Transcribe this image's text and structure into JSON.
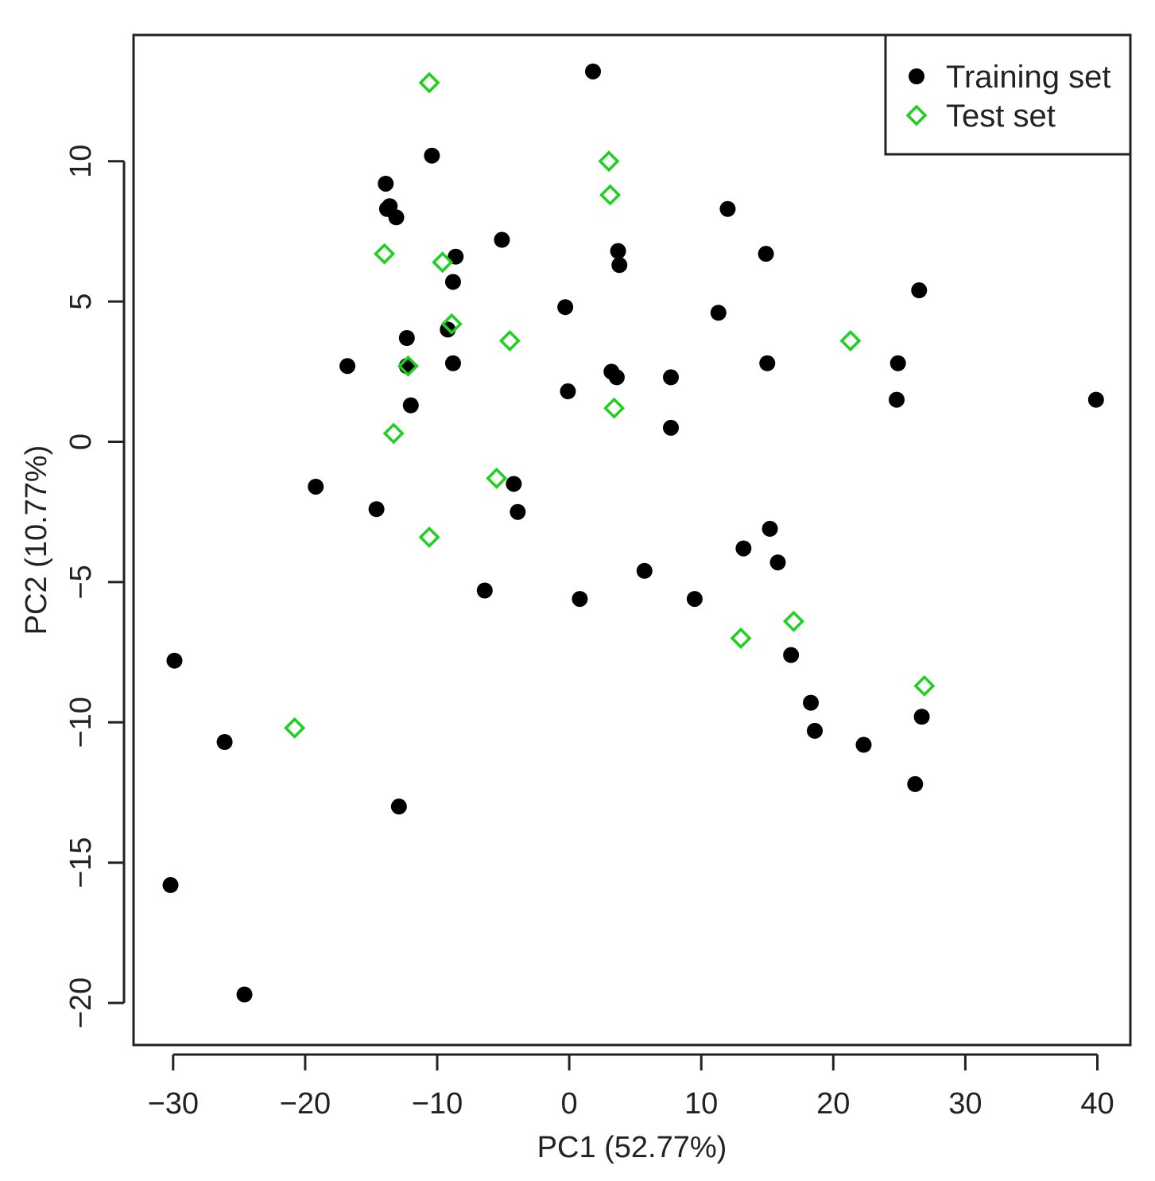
{
  "chart_data": {
    "type": "scatter",
    "title": "",
    "xlabel": "PC1 (52.77%)",
    "ylabel": "PC2 (10.77%)",
    "xlim": [
      -33,
      42.5
    ],
    "ylim": [
      -21.5,
      14.5
    ],
    "xticks": [
      -30,
      -20,
      -10,
      0,
      10,
      20,
      30,
      40
    ],
    "yticks": [
      -20,
      -15,
      -10,
      -5,
      0,
      5,
      10
    ],
    "xtick_labels": [
      "−30",
      "−20",
      "−10",
      "0",
      "10",
      "20",
      "30",
      "40"
    ],
    "ytick_labels": [
      "−20",
      "−15",
      "−10",
      "−5",
      "0",
      "5",
      "10"
    ],
    "grid": false,
    "legend_position": "top-right",
    "series": [
      {
        "name": "Training set",
        "marker": "filled-circle",
        "color": "#000000",
        "points": [
          [
            1.8,
            13.2
          ],
          [
            -10.4,
            10.2
          ],
          [
            -13.9,
            9.2
          ],
          [
            -13.8,
            8.3
          ],
          [
            -13.6,
            8.4
          ],
          [
            -13.1,
            8.0
          ],
          [
            12.0,
            8.3
          ],
          [
            -5.1,
            7.2
          ],
          [
            -8.6,
            6.6
          ],
          [
            3.7,
            6.8
          ],
          [
            14.9,
            6.7
          ],
          [
            3.8,
            6.3
          ],
          [
            -8.8,
            5.7
          ],
          [
            26.5,
            5.4
          ],
          [
            -0.3,
            4.8
          ],
          [
            11.3,
            4.6
          ],
          [
            -9.2,
            4.0
          ],
          [
            -12.3,
            3.7
          ],
          [
            -16.8,
            2.7
          ],
          [
            -12.3,
            2.7
          ],
          [
            -8.8,
            2.8
          ],
          [
            3.2,
            2.5
          ],
          [
            3.6,
            2.3
          ],
          [
            7.7,
            2.3
          ],
          [
            15.0,
            2.8
          ],
          [
            24.9,
            2.8
          ],
          [
            -0.1,
            1.8
          ],
          [
            -12.0,
            1.3
          ],
          [
            24.8,
            1.5
          ],
          [
            39.9,
            1.5
          ],
          [
            7.7,
            0.5
          ],
          [
            -19.2,
            -1.6
          ],
          [
            -14.6,
            -2.4
          ],
          [
            -4.2,
            -1.5
          ],
          [
            -3.9,
            -2.5
          ],
          [
            15.2,
            -3.1
          ],
          [
            13.2,
            -3.8
          ],
          [
            15.8,
            -4.3
          ],
          [
            5.7,
            -4.6
          ],
          [
            -6.4,
            -5.3
          ],
          [
            0.8,
            -5.6
          ],
          [
            9.5,
            -5.6
          ],
          [
            16.8,
            -7.6
          ],
          [
            -29.9,
            -7.8
          ],
          [
            18.3,
            -9.3
          ],
          [
            18.6,
            -10.3
          ],
          [
            26.7,
            -9.8
          ],
          [
            -26.1,
            -10.7
          ],
          [
            22.3,
            -10.8
          ],
          [
            26.2,
            -12.2
          ],
          [
            -12.9,
            -13.0
          ],
          [
            -30.2,
            -15.8
          ],
          [
            -24.6,
            -19.7
          ]
        ]
      },
      {
        "name": "Test set",
        "marker": "open-diamond",
        "color": "#1fd01f",
        "points": [
          [
            -10.6,
            12.8
          ],
          [
            3.0,
            10.0
          ],
          [
            3.1,
            8.8
          ],
          [
            -14.0,
            6.7
          ],
          [
            -9.6,
            6.4
          ],
          [
            -8.9,
            4.2
          ],
          [
            -4.5,
            3.6
          ],
          [
            21.3,
            3.6
          ],
          [
            -12.2,
            2.7
          ],
          [
            3.4,
            1.2
          ],
          [
            -13.3,
            0.3
          ],
          [
            -5.5,
            -1.3
          ],
          [
            -10.6,
            -3.4
          ],
          [
            17.0,
            -6.4
          ],
          [
            13.0,
            -7.0
          ],
          [
            26.9,
            -8.7
          ],
          [
            -20.8,
            -10.2
          ]
        ]
      }
    ]
  }
}
